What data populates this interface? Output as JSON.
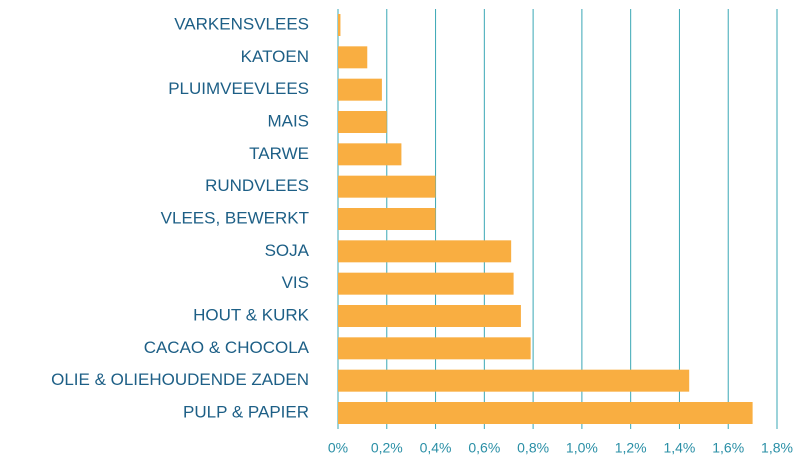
{
  "chart_data": {
    "type": "hbar",
    "categories": [
      "VARKENSVLEES",
      "KATOEN",
      "PLUIMVEEVLEES",
      "MAIS",
      "TARWE",
      "RUNDVLEES",
      "VLEES, BEWERKT",
      "SOJA",
      "VIS",
      "HOUT & KURK",
      "CACAO & CHOCOLA",
      "OLIE & OLIEHOUDENDE ZADEN",
      "PULP & PAPIER"
    ],
    "values": [
      0.01,
      0.12,
      0.18,
      0.2,
      0.26,
      0.4,
      0.4,
      0.71,
      0.72,
      0.75,
      0.79,
      1.44,
      1.7
    ],
    "color": "#f9ae41",
    "xlim": [
      0,
      1.8
    ],
    "xticks": [
      {
        "value": 0,
        "label": "0%"
      },
      {
        "value": 0.2,
        "label": "0,2%"
      },
      {
        "value": 0.4,
        "label": "0,4%"
      },
      {
        "value": 0.6,
        "label": "0,6%"
      },
      {
        "value": 0.8,
        "label": "0,8%"
      },
      {
        "value": 1.0,
        "label": "1,0%"
      },
      {
        "value": 1.2,
        "label": "1,2%"
      },
      {
        "value": 1.4,
        "label": "1,4%"
      },
      {
        "value": 1.6,
        "label": "1,6%"
      },
      {
        "value": 1.8,
        "label": "1,8%"
      }
    ],
    "grid": true
  }
}
